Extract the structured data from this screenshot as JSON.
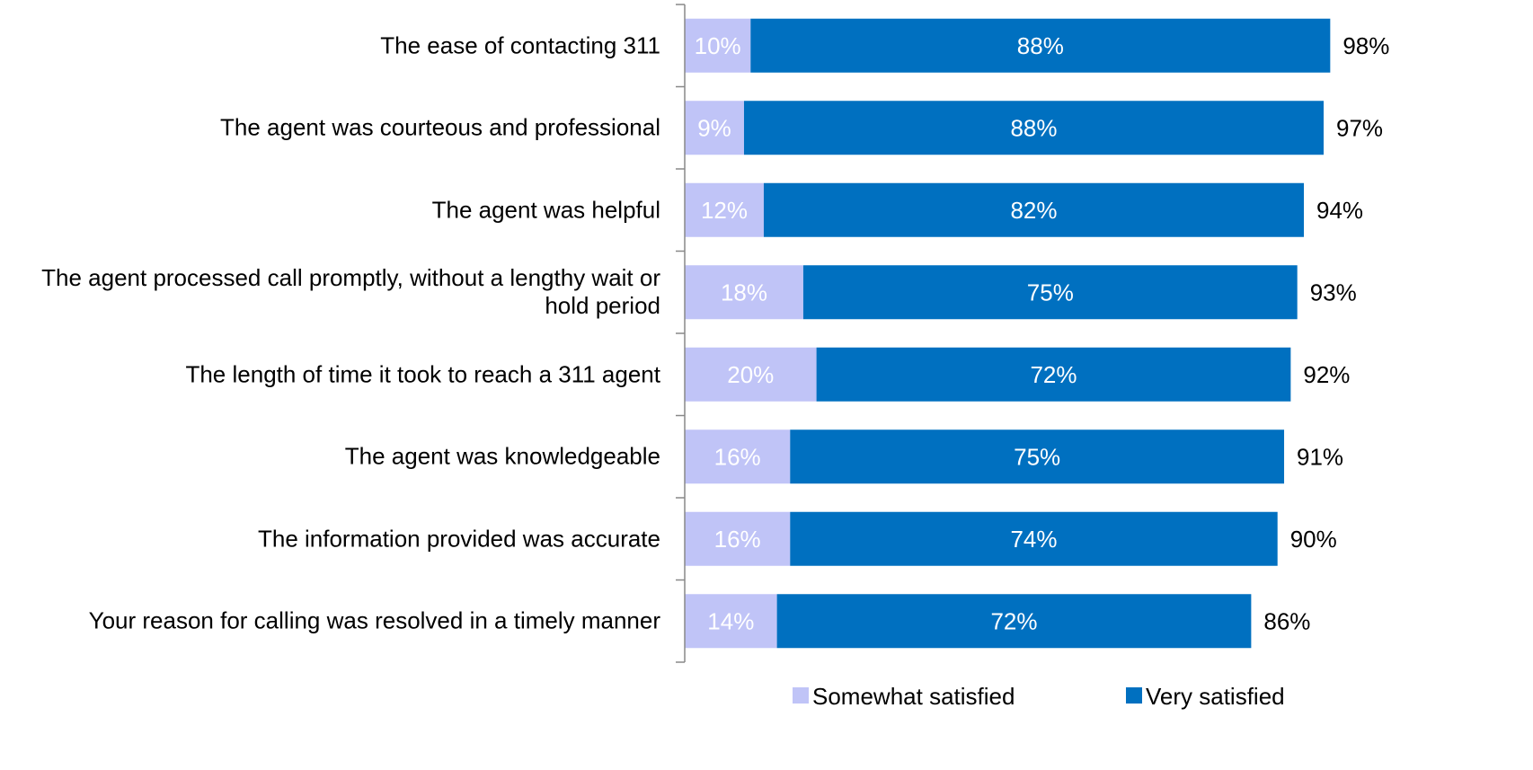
{
  "chart_data": {
    "type": "stacked-bar-horizontal",
    "categories": [
      "The ease of contacting 311",
      "The agent was courteous and professional",
      "The agent was helpful",
      "The agent processed call promptly, without a lengthy wait or hold period",
      "The length of time it took to reach a 311 agent",
      "The agent was knowledgeable",
      "The information provided was accurate",
      "Your reason for calling was resolved in a timely manner"
    ],
    "series": [
      {
        "name": "Somewhat satisfied",
        "color": "#c0c4f7",
        "values": [
          10,
          9,
          12,
          18,
          20,
          16,
          16,
          14
        ],
        "value_labels": [
          "10%",
          "9%",
          "12%",
          "18%",
          "20%",
          "16%",
          "16%",
          "14%"
        ]
      },
      {
        "name": "Very satisfied",
        "color": "#0070c0",
        "values": [
          88,
          88,
          82,
          75,
          72,
          75,
          74,
          72
        ],
        "value_labels": [
          "88%",
          "88%",
          "82%",
          "75%",
          "72%",
          "75%",
          "74%",
          "72%"
        ]
      }
    ],
    "totals": [
      98,
      97,
      94,
      93,
      92,
      91,
      90,
      86
    ],
    "total_labels": [
      "98%",
      "97%",
      "94%",
      "93%",
      "92%",
      "91%",
      "90%",
      "86%"
    ],
    "xlim": [
      0,
      100
    ],
    "legend": "bottom"
  }
}
